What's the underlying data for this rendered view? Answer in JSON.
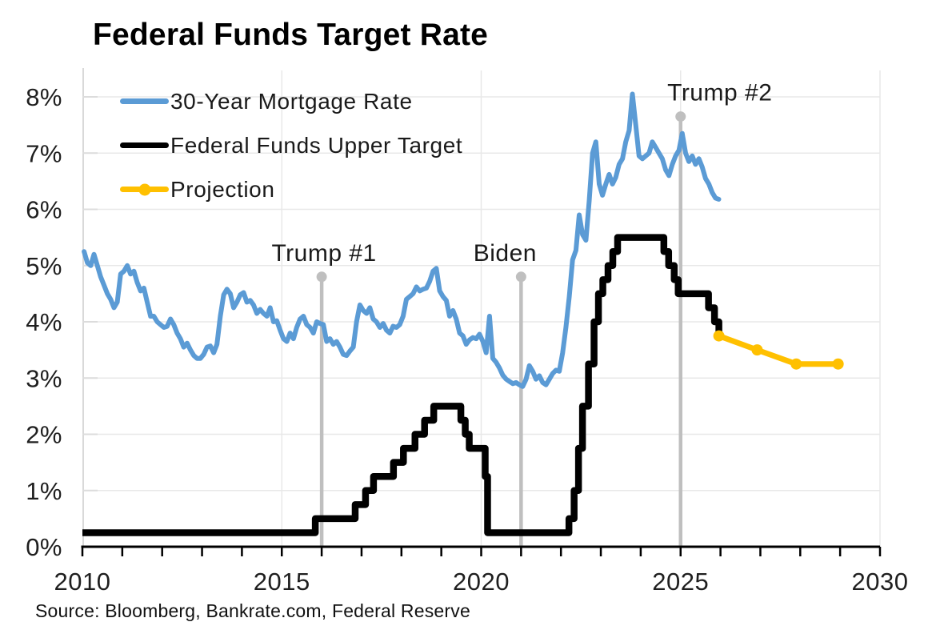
{
  "chart_data": {
    "type": "line",
    "title": "Federal Funds Target Rate",
    "source": "Source: Bloomberg, Bankrate.com, Federal Reserve",
    "x_axis": {
      "range": [
        2010,
        2030
      ],
      "major_ticks": [
        2010,
        2015,
        2020,
        2025,
        2030
      ],
      "tick_labels": [
        "2010",
        "2015",
        "2020",
        "2025",
        "2030"
      ],
      "minor_tick_interval_years": 1
    },
    "y_axis": {
      "range": [
        0,
        8
      ],
      "ticks": [
        0,
        1,
        2,
        3,
        4,
        5,
        6,
        7,
        8
      ],
      "tick_labels": [
        "0%",
        "1%",
        "2%",
        "3%",
        "4%",
        "5%",
        "6%",
        "7%",
        "8%"
      ]
    },
    "grid": {
      "horizontal_at": [
        1,
        2,
        3,
        4,
        5,
        6,
        7,
        8
      ],
      "vertical_at": [
        2015,
        2020,
        2025,
        2030
      ]
    },
    "legend": [
      {
        "label": "30-Year Mortgage Rate",
        "color": "#5B9BD5",
        "marker": false
      },
      {
        "label": "Federal Funds Upper Target",
        "color": "#000000",
        "marker": false
      },
      {
        "label": "Projection",
        "color": "#FFC000",
        "marker": true
      }
    ],
    "annotations": [
      {
        "label": "Trump #1",
        "year": 2016.0,
        "top_value": 4.8
      },
      {
        "label": "Biden",
        "year": 2021.0,
        "top_value": 4.8
      },
      {
        "label": "Trump #2",
        "year": 2025.0,
        "top_value": 7.65
      }
    ],
    "series": [
      {
        "name": "30-Year Mortgage Rate",
        "kind": "line",
        "color": "#5B9BD5",
        "width": 6,
        "monthly_start_year": 2010,
        "monthly_values": [
          5.25,
          5.05,
          5.0,
          5.2,
          5.0,
          4.8,
          4.65,
          4.5,
          4.4,
          4.25,
          4.35,
          4.85,
          4.9,
          5.0,
          4.85,
          4.9,
          4.7,
          4.55,
          4.6,
          4.35,
          4.1,
          4.1,
          4.0,
          3.95,
          3.9,
          3.92,
          4.05,
          3.95,
          3.8,
          3.7,
          3.55,
          3.62,
          3.5,
          3.4,
          3.35,
          3.35,
          3.42,
          3.55,
          3.57,
          3.45,
          3.6,
          4.1,
          4.48,
          4.58,
          4.5,
          4.25,
          4.35,
          4.48,
          4.52,
          4.35,
          4.38,
          4.3,
          4.15,
          4.22,
          4.15,
          4.1,
          4.25,
          4.0,
          4.02,
          3.85,
          3.7,
          3.65,
          3.8,
          3.7,
          3.9,
          4.05,
          4.1,
          3.95,
          3.9,
          3.8,
          4.0,
          3.97,
          3.95,
          3.65,
          3.7,
          3.6,
          3.65,
          3.55,
          3.42,
          3.4,
          3.48,
          3.55,
          4.0,
          4.3,
          4.2,
          4.15,
          4.25,
          4.05,
          4.0,
          3.9,
          3.97,
          3.85,
          3.8,
          3.92,
          3.9,
          3.95,
          4.1,
          4.4,
          4.45,
          4.5,
          4.62,
          4.55,
          4.58,
          4.6,
          4.72,
          4.9,
          4.95,
          4.55,
          4.45,
          4.38,
          4.1,
          4.2,
          4.05,
          3.8,
          3.75,
          3.6,
          3.68,
          3.72,
          3.7,
          3.78,
          3.65,
          3.45,
          4.1,
          3.35,
          3.28,
          3.18,
          3.05,
          2.98,
          2.94,
          2.9,
          2.92,
          2.88,
          2.85,
          2.98,
          3.22,
          3.12,
          2.98,
          3.04,
          2.92,
          2.88,
          2.98,
          3.08,
          3.14,
          3.12,
          3.45,
          3.9,
          4.45,
          5.1,
          5.27,
          5.9,
          5.55,
          5.45,
          6.15,
          7.0,
          7.2,
          6.45,
          6.25,
          6.45,
          6.62,
          6.45,
          6.57,
          6.8,
          6.9,
          7.2,
          7.4,
          8.05,
          7.5,
          6.95,
          6.9,
          6.95,
          7.0,
          7.2,
          7.1,
          7.0,
          6.9,
          6.7,
          6.6,
          6.8,
          6.95,
          7.05,
          7.35,
          7.0,
          6.85,
          6.95,
          6.8,
          6.9,
          6.75,
          6.55,
          6.45,
          6.3,
          6.2,
          6.18
        ]
      },
      {
        "name": "Federal Funds Upper Target",
        "kind": "step",
        "color": "#000000",
        "width": 8.5,
        "end_year": 2026.0,
        "steps": [
          [
            2010.0,
            0.25
          ],
          [
            2015.84,
            0.5
          ],
          [
            2016.84,
            0.75
          ],
          [
            2017.1,
            1.0
          ],
          [
            2017.3,
            1.25
          ],
          [
            2017.8,
            1.5
          ],
          [
            2018.05,
            1.75
          ],
          [
            2018.34,
            2.0
          ],
          [
            2018.58,
            2.25
          ],
          [
            2018.81,
            2.5
          ],
          [
            2019.49,
            2.25
          ],
          [
            2019.6,
            2.0
          ],
          [
            2019.7,
            1.75
          ],
          [
            2020.1,
            1.25
          ],
          [
            2020.16,
            0.25
          ],
          [
            2022.2,
            0.5
          ],
          [
            2022.33,
            1.0
          ],
          [
            2022.44,
            1.75
          ],
          [
            2022.54,
            2.5
          ],
          [
            2022.69,
            3.25
          ],
          [
            2022.83,
            4.0
          ],
          [
            2022.94,
            4.5
          ],
          [
            2023.05,
            4.75
          ],
          [
            2023.18,
            5.0
          ],
          [
            2023.3,
            5.25
          ],
          [
            2023.42,
            5.5
          ],
          [
            2024.58,
            5.25
          ],
          [
            2024.7,
            5.0
          ],
          [
            2024.84,
            4.75
          ],
          [
            2024.94,
            4.5
          ],
          [
            2025.7,
            4.25
          ],
          [
            2025.85,
            4.0
          ],
          [
            2025.96,
            3.75
          ]
        ]
      },
      {
        "name": "Projection",
        "kind": "line-markers",
        "color": "#FFC000",
        "width": 7,
        "marker_radius": 7,
        "points": [
          [
            2025.96,
            3.75
          ],
          [
            2026.92,
            3.5
          ],
          [
            2027.9,
            3.25
          ],
          [
            2028.95,
            3.25
          ]
        ]
      }
    ],
    "colors": {
      "annotation_line": "#BFBFBF",
      "gridline": "#E8E8E8",
      "y_axis_line": "#D9D9D9",
      "y_tick_dash": "#DCDCDC",
      "x_axis_line": "#000000",
      "text": "#1A1A1A"
    }
  }
}
